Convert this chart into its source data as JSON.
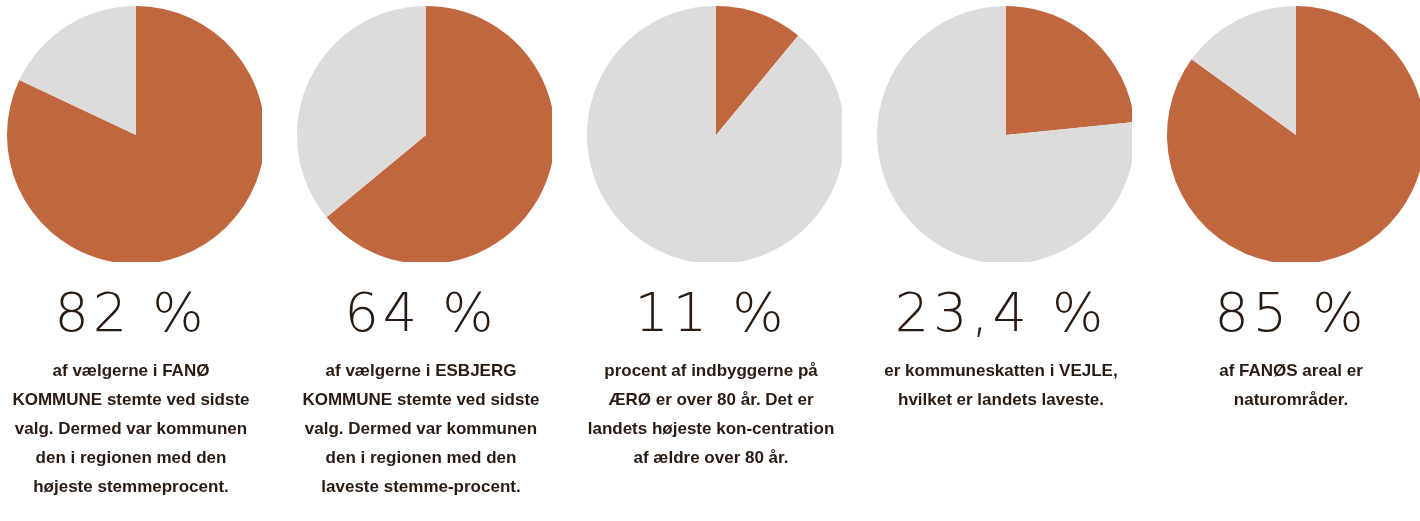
{
  "chart_data": [
    {
      "type": "pie",
      "categories": [
        null,
        null
      ],
      "values": [
        82,
        18
      ],
      "colors": [
        "#c0673f",
        "#dddcdb"
      ],
      "title": "82 %",
      "annotations": [
        "af vælgerne i FANØ KOMMUNE stemte ved sidste valg. Dermed var kommunen den i regionen med den højeste stemmeprocent."
      ]
    },
    {
      "type": "pie",
      "categories": [
        null,
        null
      ],
      "values": [
        64,
        36
      ],
      "colors": [
        "#c0673f",
        "#dddcdb"
      ],
      "title": "64 %",
      "annotations": [
        "af vælgerne i ESBJERG KOMMUNE stemte ved sidste valg. Dermed var kommunen den i regionen med den laveste stemme-procent."
      ]
    },
    {
      "type": "pie",
      "categories": [
        null,
        null
      ],
      "values": [
        11,
        89
      ],
      "colors": [
        "#c0673f",
        "#dddcdb"
      ],
      "title": "11 %",
      "annotations": [
        "procent af indbyggerne på ÆRØ er over 80 år. Det er landets højeste kon-centration af ældre over 80 år."
      ]
    },
    {
      "type": "pie",
      "categories": [
        null,
        null
      ],
      "values": [
        23.4,
        76.6
      ],
      "colors": [
        "#c0673f",
        "#dddcdb"
      ],
      "title": "23,4 %",
      "annotations": [
        "er kommuneskatten i VEJLE, hvilket er landets laveste."
      ]
    },
    {
      "type": "pie",
      "categories": [
        null,
        null
      ],
      "values": [
        85,
        15
      ],
      "colors": [
        "#c0673f",
        "#dddcdb"
      ],
      "title": "85 %",
      "annotations": [
        "af FANØS areal er naturområder."
      ]
    }
  ]
}
